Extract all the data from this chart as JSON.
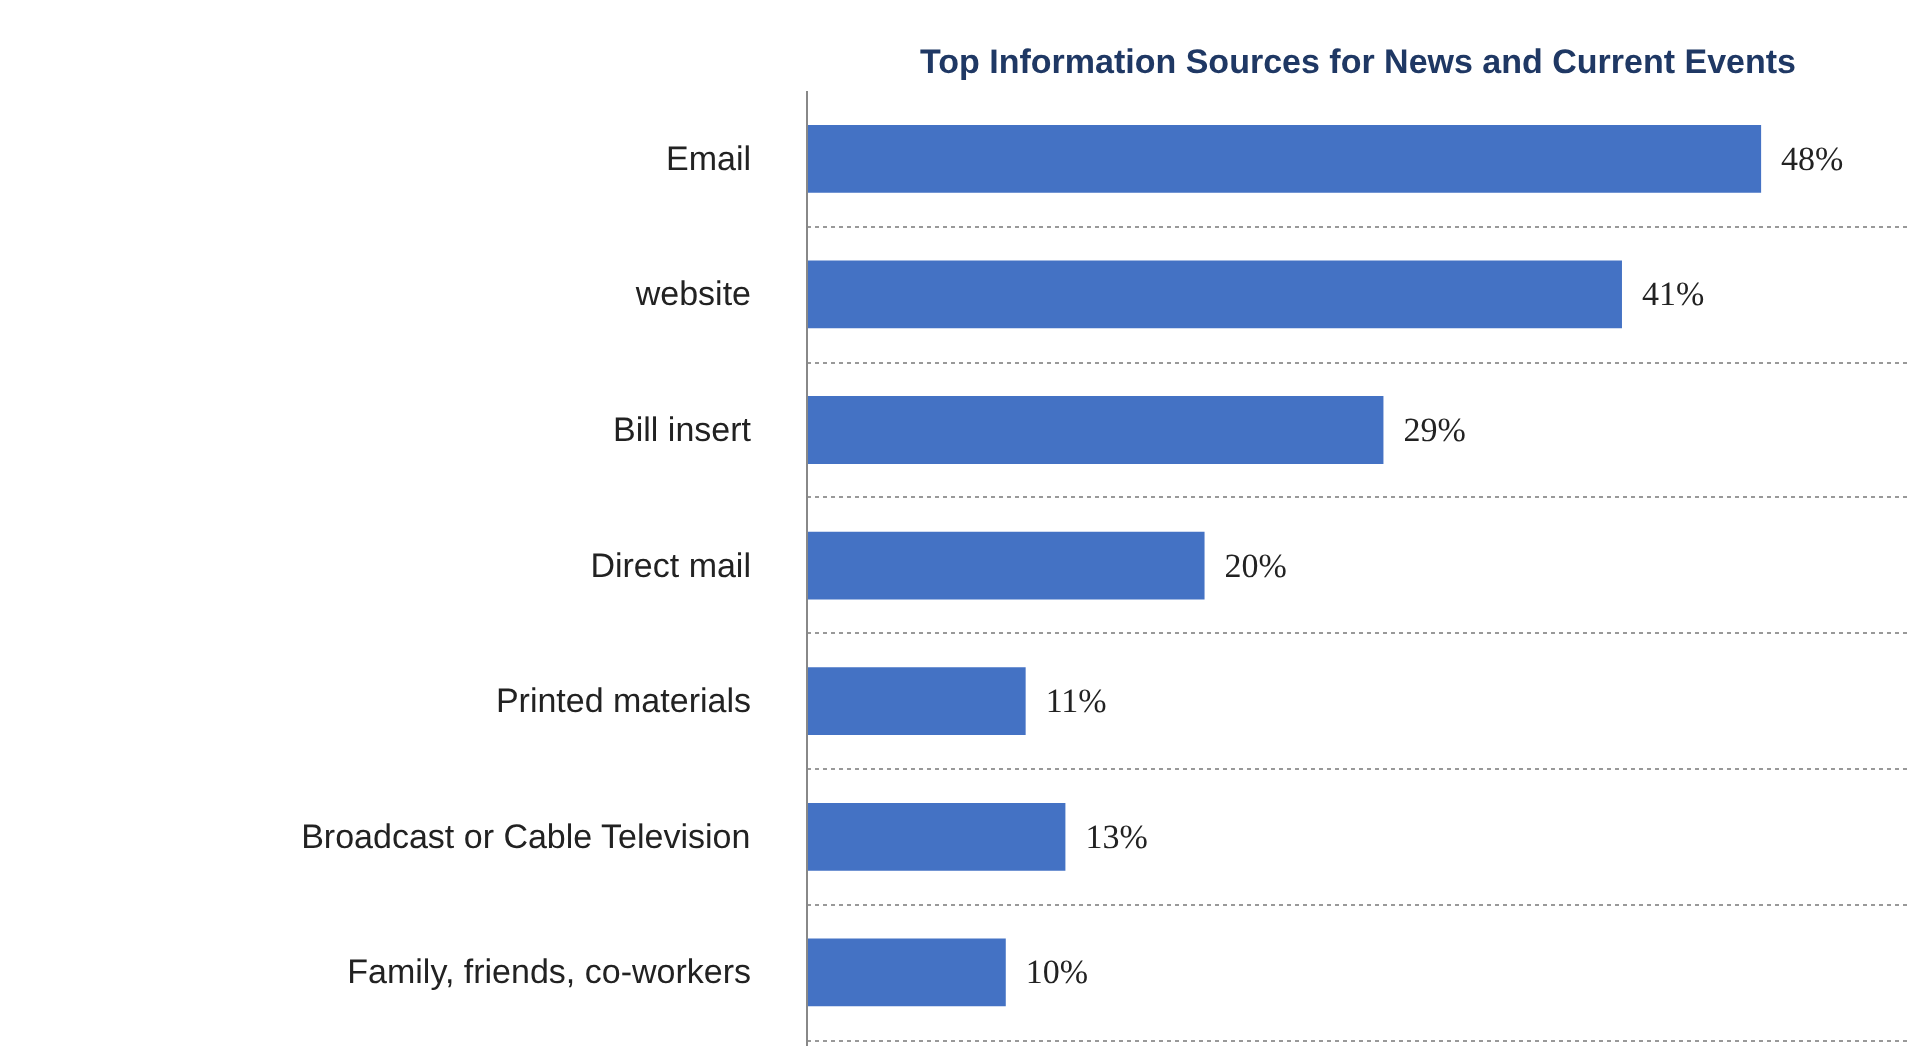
{
  "chart_data": {
    "type": "bar",
    "orientation": "horizontal",
    "title": "Top Information Sources for News and Current Events",
    "categories": [
      "Email",
      "website",
      "Bill insert",
      "Direct mail",
      "Printed materials",
      "Broadcast or Cable Television",
      "Family, friends, co-workers"
    ],
    "values": [
      48,
      41,
      29,
      20,
      11,
      13,
      10
    ],
    "value_labels": [
      "48%",
      "41%",
      "29%",
      "20%",
      "11%",
      "13%",
      "10%"
    ],
    "color": "#4472c4",
    "grid": "y"
  }
}
